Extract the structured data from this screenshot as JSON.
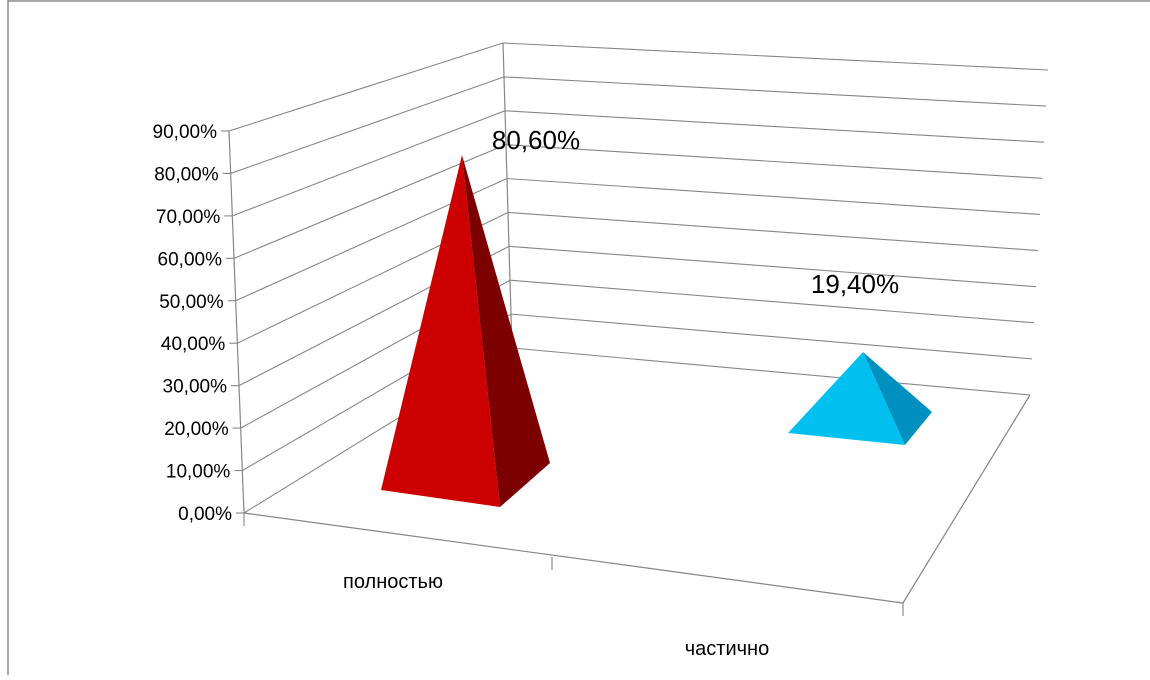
{
  "chart_data": {
    "type": "bar",
    "style": "3d-pyramid",
    "categories": [
      "полностью",
      "частично"
    ],
    "values": [
      80.6,
      19.4
    ],
    "data_labels": [
      "80,60%",
      "19,40%"
    ],
    "title": "",
    "xlabel": "",
    "ylabel": "",
    "ylim": [
      0,
      90
    ],
    "yticks": [
      "0,00%",
      "10,00%",
      "20,00%",
      "30,00%",
      "40,00%",
      "50,00%",
      "60,00%",
      "70,00%",
      "80,00%",
      "90,00%"
    ],
    "grid": true,
    "legend": "none",
    "colors": {
      "полностью": {
        "front": "#cc0000",
        "side": "#7d0000"
      },
      "частично": {
        "front": "#00c0f0",
        "side": "#0090c0"
      }
    }
  }
}
